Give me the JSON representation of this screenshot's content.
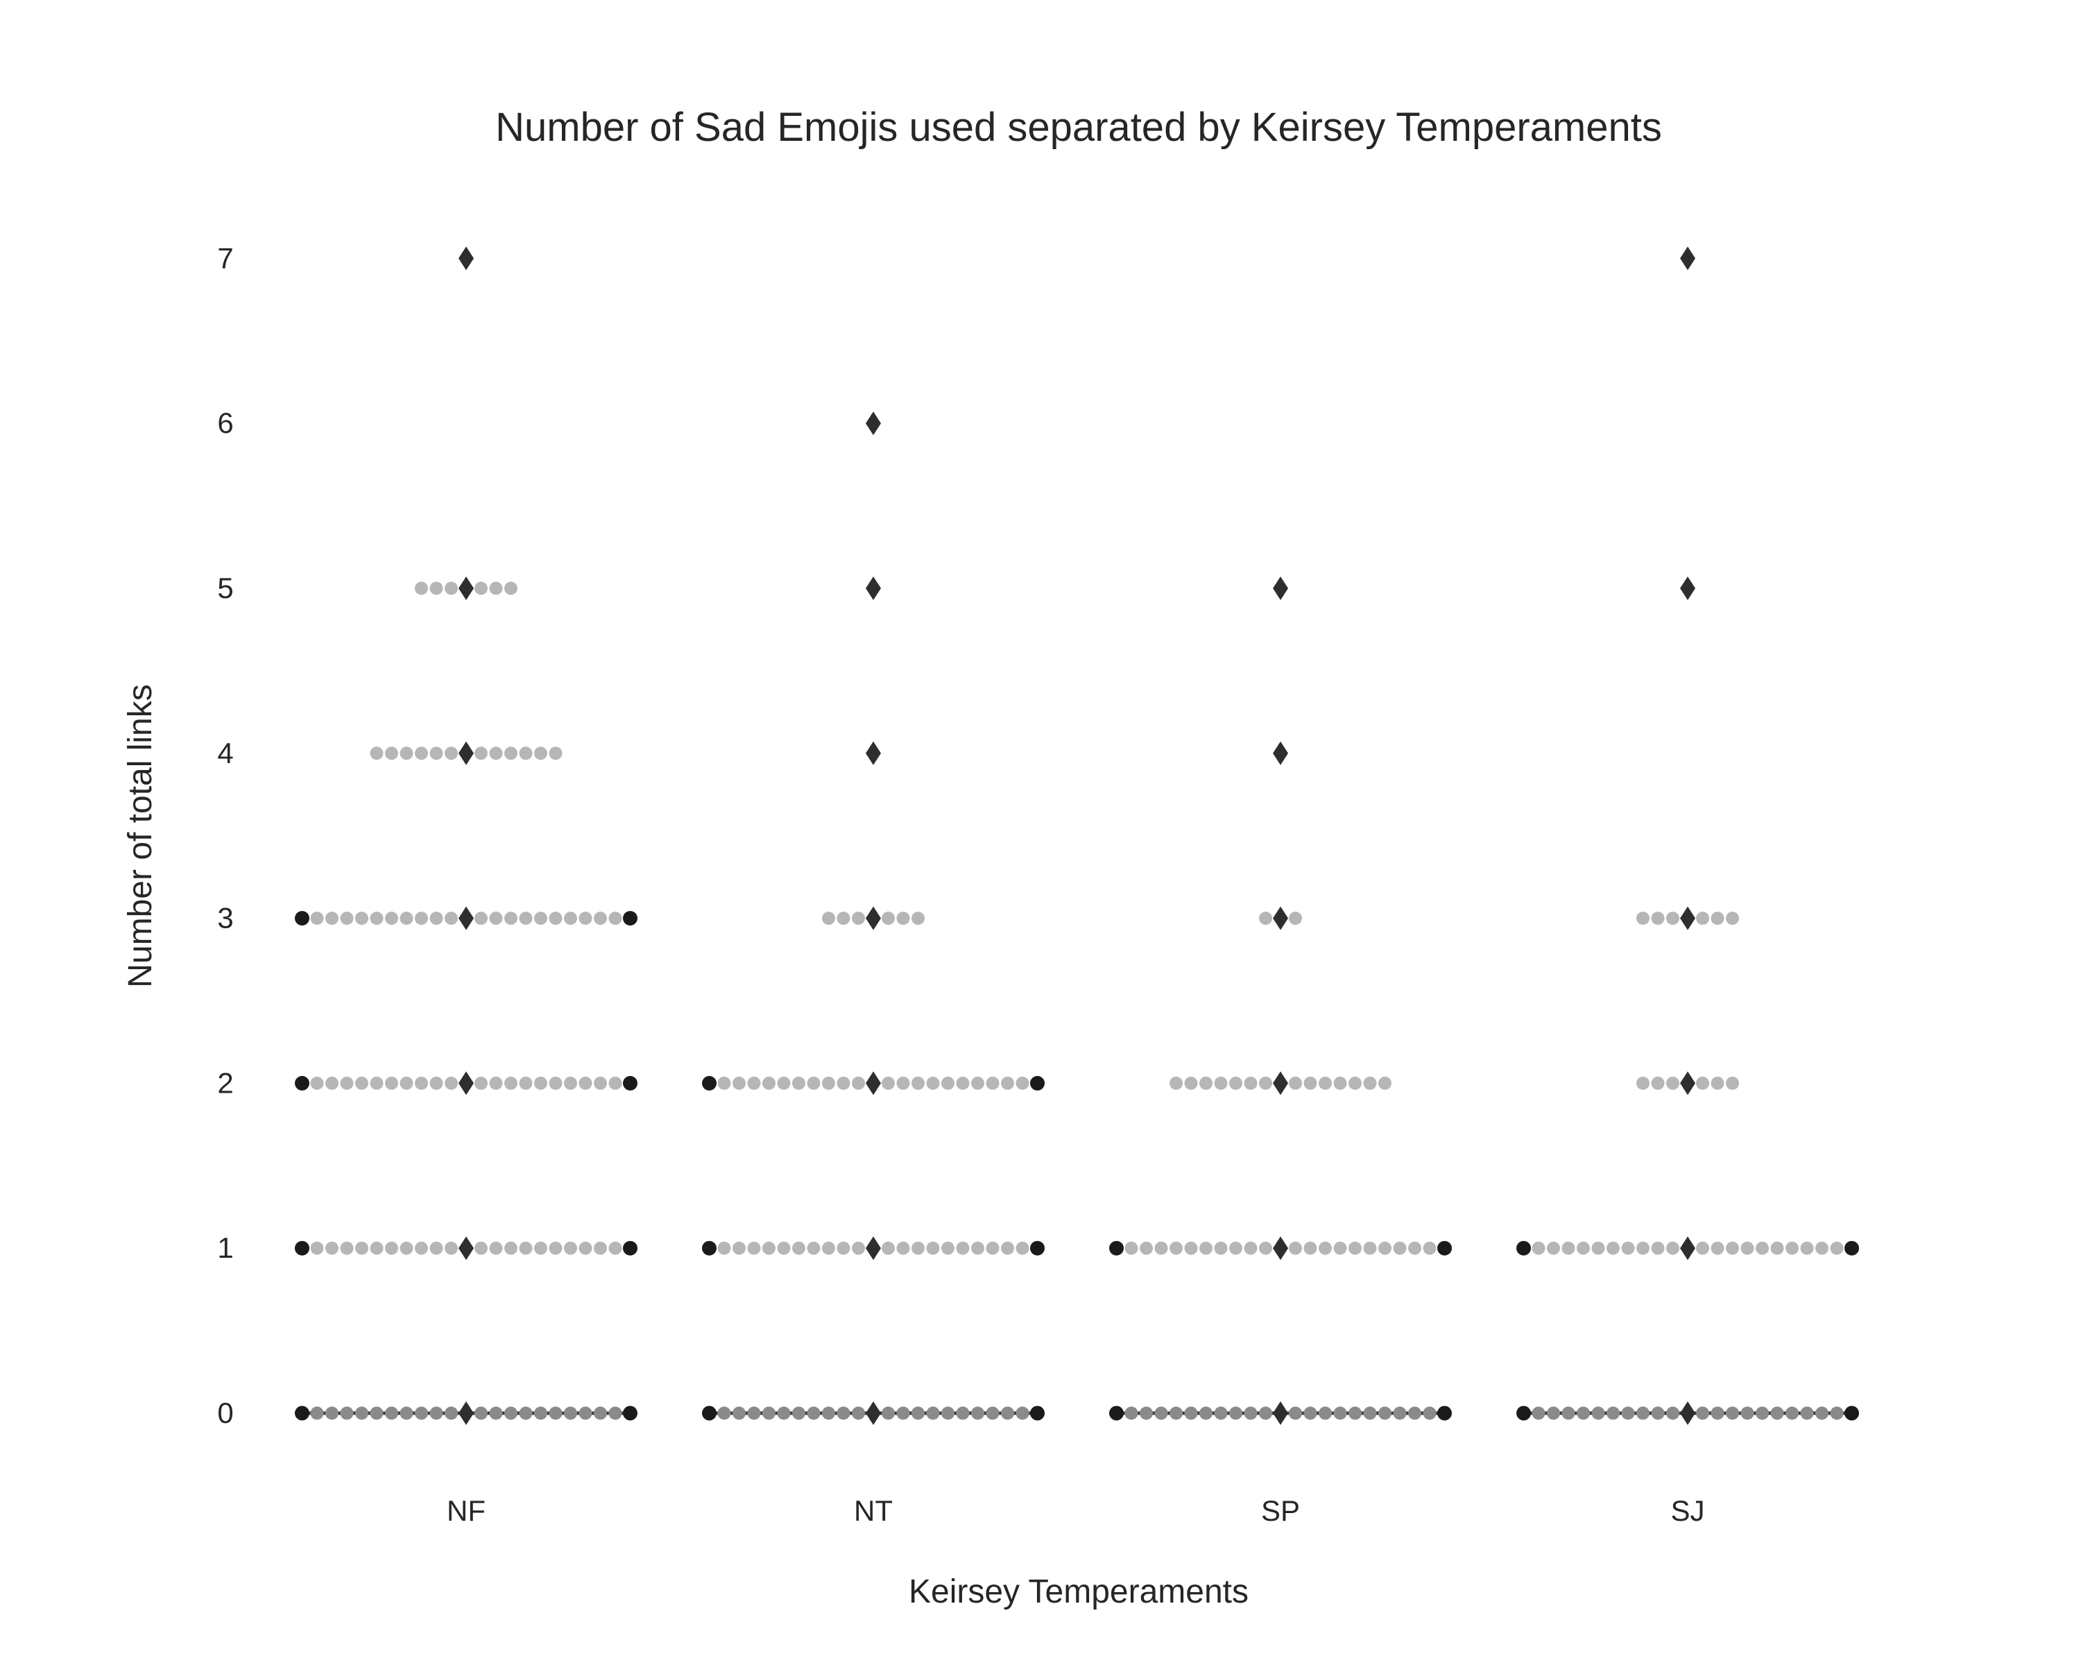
{
  "chart_data": {
    "type": "scatter",
    "title": "Number of Sad Emojis used separated by Keirsey Temperaments",
    "xlabel": "Keirsey Temperaments",
    "ylabel": "Number of total links",
    "categories": [
      "NF",
      "NT",
      "SP",
      "SJ"
    ],
    "y_ticks": [
      0,
      1,
      2,
      3,
      4,
      5,
      6,
      7
    ],
    "ylim": [
      -0.3,
      7.3
    ],
    "grid": false,
    "legend": "none",
    "points_per_value": {
      "NF": {
        "0": 23,
        "1": 23,
        "2": 23,
        "3": 23,
        "4": 13,
        "5": 7,
        "7": 1
      },
      "NT": {
        "0": 23,
        "1": 23,
        "2": 23,
        "3": 7,
        "4": 1,
        "5": 1,
        "6": 1
      },
      "SP": {
        "0": 23,
        "1": 23,
        "2": 15,
        "3": 3,
        "4": 1,
        "5": 1
      },
      "SJ": {
        "0": 23,
        "1": 23,
        "2": 7,
        "3": 7,
        "5": 1,
        "7": 1
      }
    },
    "colors": {
      "point": "#b6b6b6",
      "edge_point": "#1a1a1a",
      "marker": "#2e2e2e",
      "text": "#262626"
    }
  }
}
